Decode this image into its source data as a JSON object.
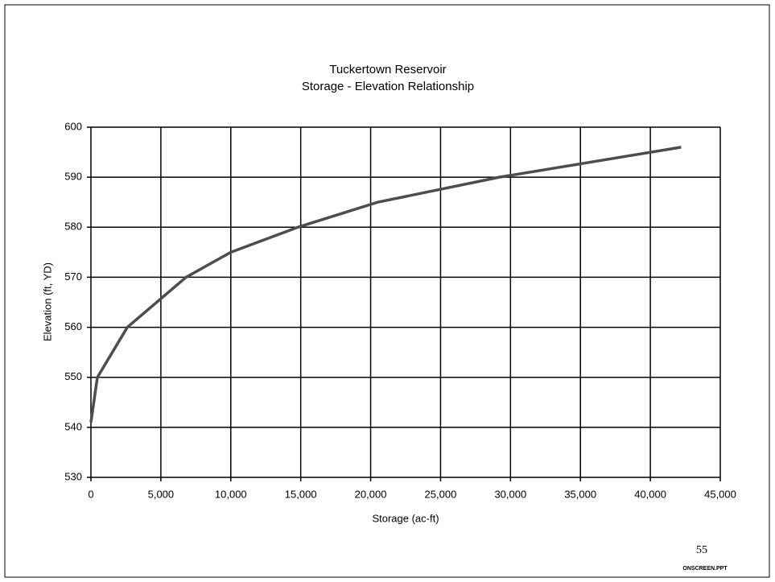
{
  "chart_data": {
    "type": "line",
    "title": "Tuckertown Reservoir",
    "subtitle": "Storage - Elevation Relationship",
    "x_label": "Storage (ac-ft)",
    "y_label": "Elevation (ft, YD)",
    "x": [
      0,
      460,
      2600,
      6800,
      10000,
      14800,
      20500,
      29200,
      42200
    ],
    "series": [
      {
        "color": "#4d4d4d",
        "values": [
          541,
          550,
          560,
          570,
          575,
          580,
          585,
          590,
          596
        ]
      }
    ],
    "xlim": [
      0,
      45000
    ],
    "xticks": [
      0,
      {
        "value": 5000,
        "label": "5,000"
      },
      {
        "value": 10000,
        "label": "10,000"
      },
      {
        "value": 15000,
        "label": "15,000"
      },
      {
        "value": 20000,
        "label": "20,000"
      },
      {
        "value": 25000,
        "label": "25,000"
      },
      {
        "value": 30000,
        "label": "30,000"
      },
      {
        "value": 35000,
        "label": "35,000"
      },
      {
        "value": 40000,
        "label": "40,000"
      },
      {
        "value": 45000,
        "label": "45,000"
      }
    ],
    "ylim": [
      530,
      600
    ],
    "yticks": [
      530,
      540,
      550,
      560,
      570,
      580,
      590,
      600
    ],
    "grid": true
  },
  "page_number": "55",
  "footer": "ONSCREEN.PPT"
}
